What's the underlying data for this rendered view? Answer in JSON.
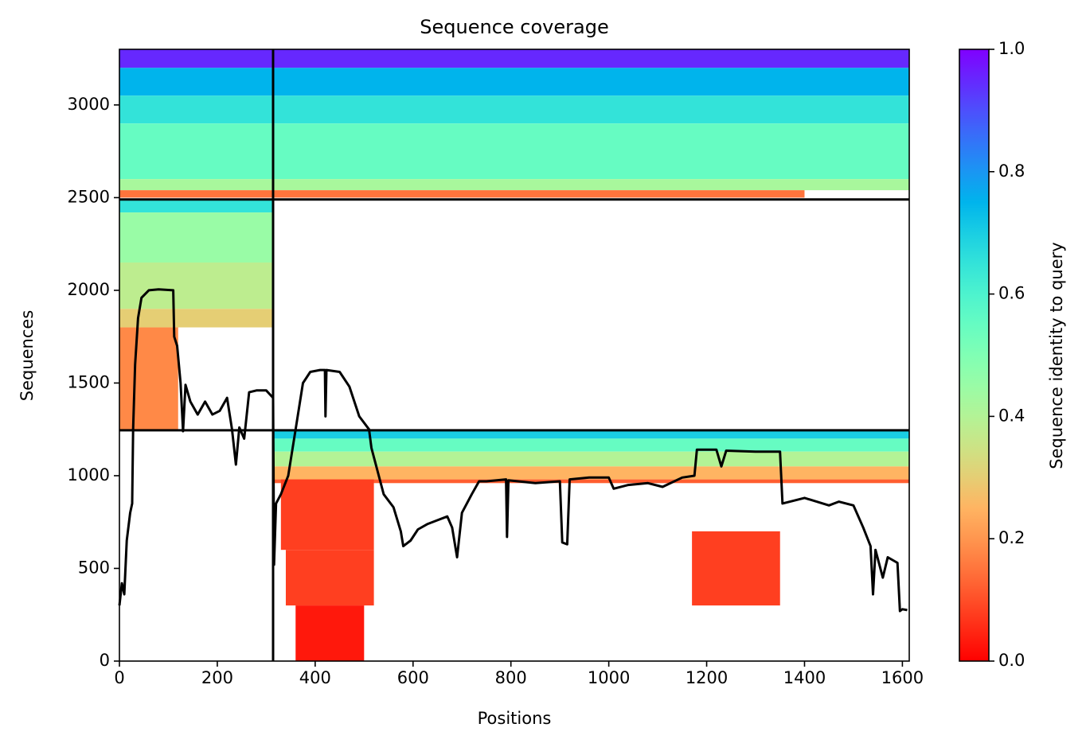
{
  "chart_data": {
    "type": "heatmap",
    "title": "Sequence coverage",
    "x_label": "Positions",
    "y_label": "Sequences",
    "colorbar_label": "Sequence identity to query",
    "colormap": "rainbow_r",
    "xlim": [
      0,
      1614
    ],
    "ylim": [
      0,
      3300
    ],
    "xticks": [
      0,
      200,
      400,
      600,
      800,
      1000,
      1200,
      1400,
      1600
    ],
    "yticks": [
      0,
      500,
      1000,
      1500,
      2000,
      2500,
      3000
    ],
    "clim": [
      0,
      1
    ],
    "cticks": [
      {
        "value": 0,
        "label": "0.0"
      },
      0.2,
      0.4,
      0.6,
      0.8,
      {
        "value": 1,
        "label": "1.0"
      }
    ],
    "heatmap": {
      "x0": [
        0,
        0,
        0,
        0,
        0,
        0,
        0,
        0,
        0,
        0,
        0,
        314,
        314,
        314,
        314,
        314,
        330,
        340,
        360,
        1170
      ],
      "x1": [
        1614,
        1614,
        1614,
        1614,
        1614,
        314,
        314,
        314,
        314,
        120,
        1400,
        1614,
        1614,
        1614,
        1614,
        1614,
        520,
        520,
        500,
        1350
      ],
      "y0": [
        3200,
        3050,
        2900,
        2600,
        2540,
        2420,
        2150,
        1900,
        1800,
        1250,
        2500,
        1200,
        1130,
        1050,
        980,
        960,
        600,
        300,
        0,
        300
      ],
      "y1": [
        3300,
        3200,
        3050,
        2900,
        2600,
        2490,
        2420,
        2150,
        1900,
        1800,
        2540,
        1250,
        1200,
        1130,
        1050,
        980,
        980,
        600,
        300,
        700
      ],
      "values": [
        0.95,
        0.75,
        0.65,
        0.55,
        0.42,
        0.65,
        0.45,
        0.38,
        0.3,
        0.18,
        0.15,
        0.7,
        0.55,
        0.4,
        0.25,
        0.12,
        0.08,
        0.08,
        0.03,
        0.08
      ]
    },
    "chain_breaks_x": [
      314
    ],
    "chain_breaks_y": [
      1245,
      2490
    ],
    "coverage": {
      "color": "#000000",
      "x": [
        0,
        5,
        10,
        15,
        22,
        26,
        28,
        32,
        38,
        45,
        60,
        80,
        110,
        112,
        118,
        125,
        130,
        135,
        145,
        160,
        175,
        190,
        205,
        220,
        230,
        238,
        245,
        255,
        265,
        280,
        300,
        314,
        316,
        320,
        330,
        345,
        360,
        375,
        390,
        410,
        420,
        421,
        423,
        450,
        470,
        490,
        510,
        515,
        520,
        540,
        560,
        575,
        580,
        595,
        610,
        630,
        650,
        670,
        680,
        690,
        700,
        720,
        735,
        750,
        790,
        792,
        795,
        850,
        900,
        905,
        915,
        920,
        960,
        1000,
        1010,
        1040,
        1080,
        1110,
        1150,
        1175,
        1180,
        1220,
        1230,
        1240,
        1300,
        1350,
        1355,
        1400,
        1450,
        1470,
        1500,
        1520,
        1535,
        1540,
        1545,
        1560,
        1570,
        1590,
        1595,
        1600,
        1610
      ],
      "values": [
        300,
        420,
        360,
        650,
        800,
        850,
        1250,
        1600,
        1850,
        1960,
        2000,
        2005,
        2000,
        1750,
        1700,
        1500,
        1240,
        1490,
        1400,
        1330,
        1400,
        1330,
        1350,
        1420,
        1250,
        1060,
        1260,
        1200,
        1450,
        1460,
        1460,
        1420,
        520,
        850,
        900,
        1000,
        1250,
        1500,
        1560,
        1570,
        1570,
        1320,
        1570,
        1560,
        1480,
        1320,
        1250,
        1150,
        1100,
        900,
        830,
        700,
        620,
        650,
        710,
        740,
        760,
        780,
        720,
        560,
        800,
        900,
        970,
        970,
        980,
        670,
        975,
        960,
        970,
        640,
        630,
        980,
        990,
        990,
        930,
        950,
        960,
        940,
        990,
        1000,
        1140,
        1140,
        1050,
        1135,
        1130,
        1130,
        850,
        880,
        840,
        860,
        840,
        720,
        620,
        360,
        600,
        450,
        560,
        530,
        270,
        280,
        275
      ]
    }
  }
}
